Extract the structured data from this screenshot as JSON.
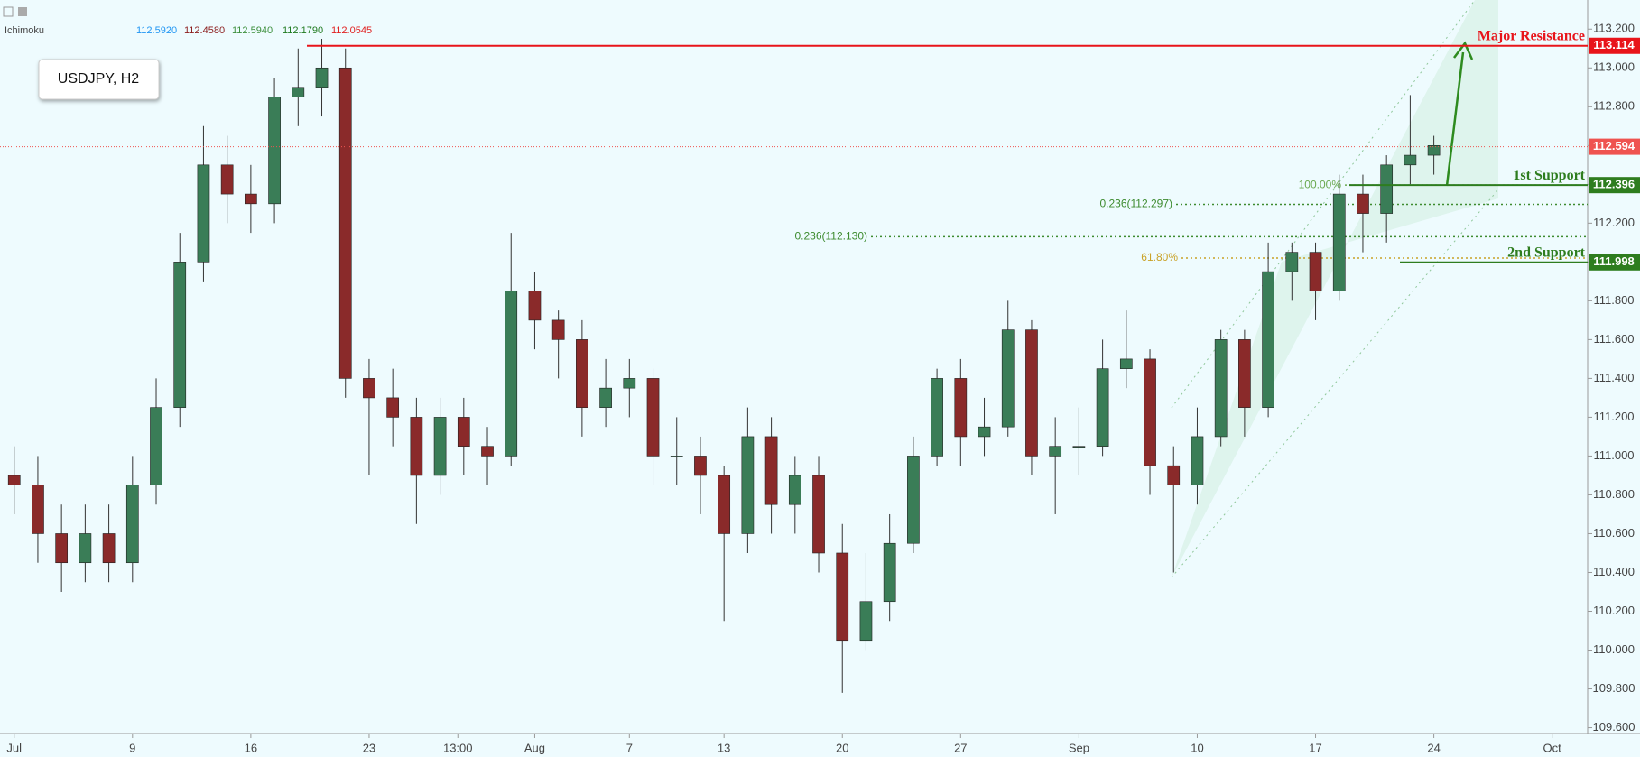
{
  "header": {
    "symbol_box": "USDJPY, H2",
    "indicator": "Ichimoku",
    "indicator_values": [
      {
        "value": 112.592,
        "label": "112.5920",
        "color": "#2196f3"
      },
      {
        "value": 112.458,
        "label": "112.4580",
        "color": "#8b1c1c"
      },
      {
        "value": 112.594,
        "label": "112.5940",
        "color": "#3c8f3c"
      },
      {
        "value": 112.179,
        "label": "112.1790",
        "color": "#1f7a1f"
      },
      {
        "value": 112.0545,
        "label": "112.0545",
        "color": "#e02020"
      }
    ]
  },
  "chart_data": {
    "type": "candlestick",
    "open": [
      110.9,
      110.85,
      110.6,
      110.45,
      110.6,
      110.45,
      110.85,
      111.25,
      112.0,
      112.5,
      112.35,
      112.3,
      112.85,
      112.9,
      113.0,
      111.4,
      111.3,
      111.2,
      110.9,
      111.2,
      111.05,
      111.0,
      111.85,
      111.7,
      111.6,
      111.25,
      111.35,
      111.4,
      111.0,
      111.0,
      110.9,
      110.6,
      111.1,
      110.75,
      110.9,
      110.5,
      110.05,
      110.25,
      110.55,
      111.0,
      111.4,
      111.1,
      111.15,
      111.65,
      111.0,
      111.05,
      111.05,
      111.45,
      111.5,
      110.95,
      110.85,
      111.1,
      111.6,
      111.25,
      111.95,
      112.05,
      111.85,
      112.35,
      112.25,
      112.5,
      112.55
    ],
    "high": [
      111.05,
      111.0,
      110.75,
      110.75,
      110.75,
      111.0,
      111.4,
      112.15,
      112.7,
      112.65,
      112.5,
      112.95,
      113.1,
      113.15,
      113.1,
      111.5,
      111.45,
      111.3,
      111.3,
      111.3,
      111.15,
      112.15,
      111.95,
      111.75,
      111.7,
      111.5,
      111.5,
      111.45,
      111.2,
      111.1,
      110.95,
      111.25,
      111.2,
      111.0,
      111.0,
      110.65,
      110.5,
      110.7,
      111.1,
      111.45,
      111.5,
      111.3,
      111.8,
      111.7,
      111.2,
      111.25,
      111.6,
      111.75,
      111.55,
      111.05,
      111.25,
      111.65,
      111.65,
      112.1,
      112.1,
      112.1,
      112.45,
      112.45,
      112.55,
      112.86,
      112.65
    ],
    "low": [
      110.7,
      110.45,
      110.3,
      110.35,
      110.35,
      110.35,
      110.75,
      111.15,
      111.9,
      112.2,
      112.15,
      112.2,
      112.7,
      112.75,
      111.3,
      110.9,
      111.05,
      110.65,
      110.8,
      110.9,
      110.85,
      110.95,
      111.55,
      111.4,
      111.1,
      111.15,
      111.2,
      110.85,
      110.85,
      110.7,
      110.15,
      110.5,
      110.6,
      110.6,
      110.4,
      109.78,
      110.0,
      110.15,
      110.5,
      110.95,
      110.95,
      111.0,
      111.1,
      110.9,
      110.7,
      110.9,
      111.0,
      111.35,
      110.8,
      110.4,
      110.75,
      111.05,
      111.1,
      111.2,
      111.8,
      111.7,
      111.8,
      112.05,
      112.1,
      112.4,
      112.45
    ],
    "close": [
      110.85,
      110.6,
      110.45,
      110.6,
      110.45,
      110.85,
      111.25,
      112.0,
      112.5,
      112.35,
      112.3,
      112.85,
      112.9,
      113.0,
      111.4,
      111.3,
      111.2,
      110.9,
      111.2,
      111.05,
      111.0,
      111.85,
      111.7,
      111.6,
      111.25,
      111.35,
      111.4,
      111.0,
      111.0,
      110.9,
      110.6,
      111.1,
      110.75,
      110.9,
      110.5,
      110.05,
      110.25,
      110.55,
      111.0,
      111.4,
      111.1,
      111.15,
      111.65,
      111.0,
      111.05,
      111.05,
      111.45,
      111.5,
      110.95,
      110.85,
      111.1,
      111.6,
      111.25,
      111.95,
      112.05,
      111.85,
      112.35,
      112.25,
      112.5,
      112.55,
      112.6
    ],
    "up_color": "#3a7d57",
    "down_color": "#8a2a2a",
    "xlim": [
      -0.6,
      66.5
    ],
    "xticks": [
      {
        "value": 0,
        "label": "Jul"
      },
      {
        "value": 5,
        "label": "9"
      },
      {
        "value": 10,
        "label": "16"
      },
      {
        "value": 15,
        "label": "23"
      },
      {
        "value": 18.75,
        "label": "13:00"
      },
      {
        "value": 22,
        "label": "Aug"
      },
      {
        "value": 26,
        "label": "7"
      },
      {
        "value": 30,
        "label": "13"
      },
      {
        "value": 35,
        "label": "20"
      },
      {
        "value": 40,
        "label": "27"
      },
      {
        "value": 45,
        "label": "Sep"
      },
      {
        "value": 50,
        "label": "10"
      },
      {
        "value": 55,
        "label": "17"
      },
      {
        "value": 60,
        "label": "24"
      },
      {
        "value": 65,
        "label": "Oct"
      }
    ],
    "ylim": [
      109.57,
      113.35
    ],
    "yticks": [
      {
        "value": 109.6,
        "label": "109.600"
      },
      {
        "value": 109.8,
        "label": "109.800"
      },
      {
        "value": 110.0,
        "label": "110.000"
      },
      {
        "value": 110.2,
        "label": "110.200"
      },
      {
        "value": 110.4,
        "label": "110.400"
      },
      {
        "value": 110.6,
        "label": "110.600"
      },
      {
        "value": 110.8,
        "label": "110.800"
      },
      {
        "value": 111.0,
        "label": "111.000"
      },
      {
        "value": 111.2,
        "label": "111.200"
      },
      {
        "value": 111.4,
        "label": "111.400"
      },
      {
        "value": 111.6,
        "label": "111.600"
      },
      {
        "value": 111.8,
        "label": "111.800"
      },
      {
        "value": 112.0,
        "label": "112.000"
      },
      {
        "value": 112.2,
        "label": "112.200"
      },
      {
        "value": 112.4,
        "label": "112.400"
      },
      {
        "value": 112.6,
        "label": "112.600"
      },
      {
        "value": 112.8,
        "label": "112.800"
      },
      {
        "value": 113.0,
        "label": "113.000"
      },
      {
        "value": 113.2,
        "label": "113.200"
      }
    ],
    "levels": [
      {
        "name": "Major Resistance",
        "value": 113.114,
        "color": "#e8141a"
      },
      {
        "value": 112.594,
        "color": "#ef5350"
      },
      {
        "name": "1st Support",
        "value": 112.396,
        "color": "#2e7d1f"
      },
      {
        "name": "2nd Support",
        "value": 111.998,
        "color": "#2e7d1f"
      }
    ],
    "fib_lines": [
      {
        "label": "100.00%",
        "value": 112.396,
        "color": "#6aa84f"
      },
      {
        "label": "0.236(112.297)",
        "value": 112.297,
        "color": "#3d8b2f"
      },
      {
        "label": "0.236(112.130)",
        "value": 112.13,
        "color": "#3d8b2f"
      },
      {
        "label": "61.80%",
        "value": 112.02,
        "color": "#c9a227"
      }
    ]
  }
}
